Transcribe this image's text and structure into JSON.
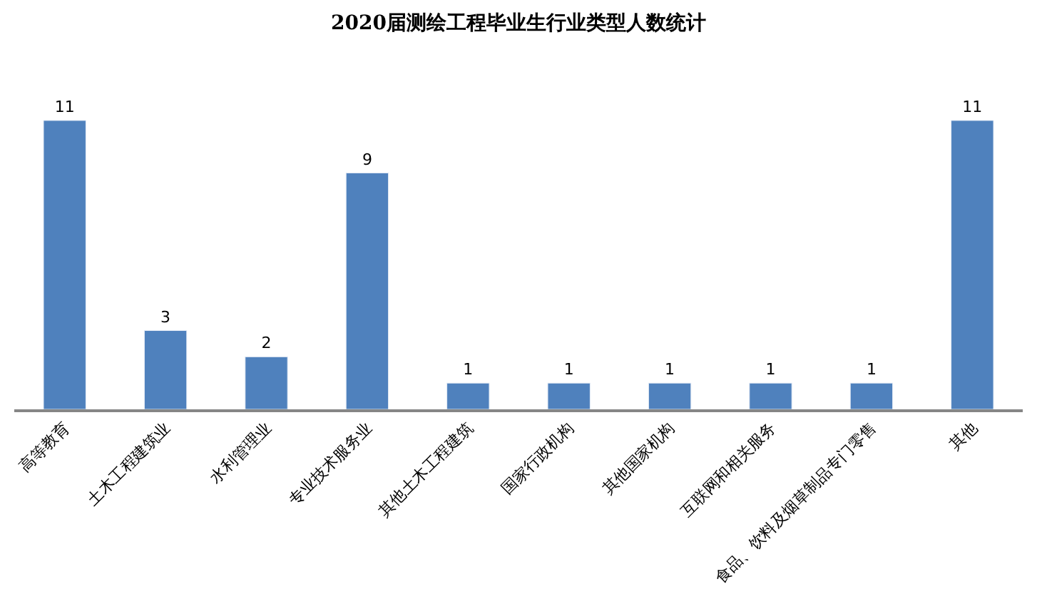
{
  "chart_data": {
    "type": "bar",
    "title": "2020届测绘工程毕业生行业类型人数统计",
    "categories": [
      "高等教育",
      "土木工程建筑业",
      "水利管理业",
      "专业技术服务业",
      "其他土木工程建筑",
      "国家行政机构",
      "其他国家机构",
      "互联网和相关服务",
      "食品、饮料及烟草制品专门零售",
      "其他"
    ],
    "values": [
      11,
      3,
      2,
      9,
      1,
      1,
      1,
      1,
      1,
      11
    ],
    "color": "#4f81bd",
    "data_labels": true
  }
}
